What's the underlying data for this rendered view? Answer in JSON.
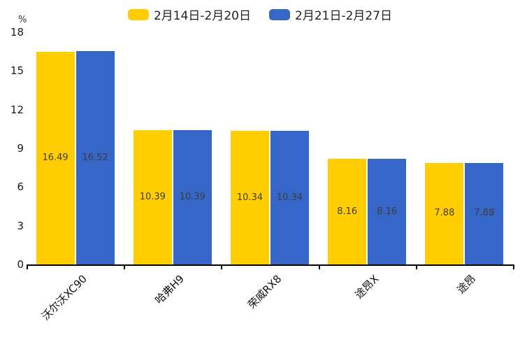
{
  "legend": {
    "items": [
      {
        "label": "2月14日-2月20日",
        "color": "#FFCD00"
      },
      {
        "label": "2月21日-2月27日",
        "color": "#3666C8"
      }
    ]
  },
  "y_axis": {
    "unit": "%",
    "ticks": [
      0,
      3,
      6,
      9,
      12,
      15,
      18
    ]
  },
  "chart_data": {
    "type": "bar",
    "categories": [
      "沃尔沃XC90",
      "哈弗H9",
      "荣威RX8",
      "途昂X",
      "途昂"
    ],
    "series": [
      {
        "name": "2月14日-2月20日",
        "color": "#FFCD00",
        "values": [
          16.49,
          10.39,
          10.34,
          8.16,
          7.88
        ]
      },
      {
        "name": "2月21日-2月27日",
        "color": "#3666C8",
        "values": [
          16.52,
          10.39,
          10.34,
          8.16,
          7.88
        ]
      }
    ],
    "title": "",
    "xlabel": "",
    "ylabel": "%",
    "ylim": [
      0,
      18
    ],
    "grid": false,
    "legend_position": "top",
    "value_labels": "inside-center",
    "label_color": "#3d3d3d",
    "axis_color": "#000000"
  }
}
